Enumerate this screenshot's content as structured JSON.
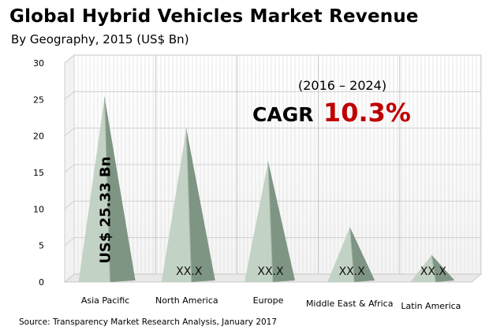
{
  "chart_data": {
    "type": "bar",
    "title": "Global Hybrid Vehicles Market Revenue",
    "subtitle": "By Geography, 2015 (US$ Bn)",
    "categories": [
      "Asia Pacific",
      "North America",
      "Europe",
      "Middle East & Africa",
      "Latin America"
    ],
    "values": [
      25.33,
      21,
      16.5,
      7.5,
      3.7
    ],
    "data_labels": [
      "US$ 25.33 Bn",
      "XX.X",
      "XX.X",
      "XX.X",
      "XX.X"
    ],
    "ylim": [
      0,
      30
    ],
    "yticks": [
      "0",
      "5",
      "10",
      "15",
      "20",
      "25",
      "30"
    ],
    "grid": true,
    "annotation": {
      "period": "(2016 – 2024)",
      "cagr_label": "CAGR",
      "cagr_value": "10.3%"
    },
    "colors": {
      "pyramid_light": "#c2d2c4",
      "pyramid_mid": "#9fb3a2",
      "pyramid_dark": "#7f9583",
      "grid": "#d8d8d8",
      "accent": "#c00000"
    }
  },
  "source": "Source: Transparency Market Research Analysis, January 2017"
}
